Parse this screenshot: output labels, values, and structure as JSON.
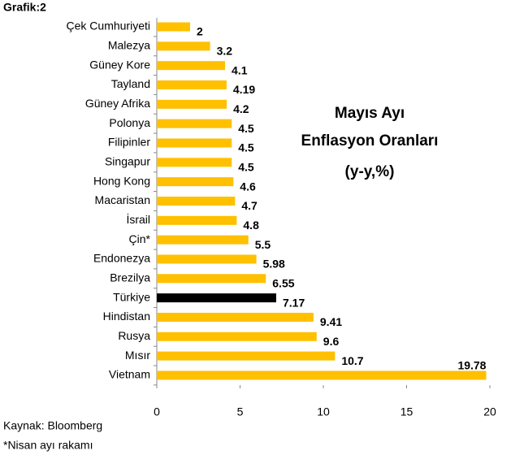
{
  "chart_data": {
    "type": "barh",
    "label": "Grafik:2",
    "title": [
      "Mayıs Ayı",
      "Enflasyon Oranları",
      "(y-y,%)"
    ],
    "categories": [
      "Çek Cumhuriyeti",
      "Malezya",
      "Güney Kore",
      "Tayland",
      "Güney Afrika",
      "Polonya",
      "Filipinler",
      "Singapur",
      "Hong Kong",
      "Macaristan",
      "İsrail",
      "Çin*",
      "Endonezya",
      "Brezilya",
      "Türkiye",
      "Hindistan",
      "Rusya",
      "Mısır",
      "Vietnam"
    ],
    "values": [
      2,
      3.2,
      4.1,
      4.19,
      4.2,
      4.5,
      4.5,
      4.5,
      4.6,
      4.7,
      4.8,
      5.5,
      5.98,
      6.55,
      7.17,
      9.41,
      9.6,
      10.7,
      19.78
    ],
    "colors": [
      "#FFC000",
      "#FFC000",
      "#FFC000",
      "#FFC000",
      "#FFC000",
      "#FFC000",
      "#FFC000",
      "#FFC000",
      "#FFC000",
      "#FFC000",
      "#FFC000",
      "#FFC000",
      "#FFC000",
      "#FFC000",
      "#000000",
      "#FFC000",
      "#FFC000",
      "#FFC000",
      "#FFC000"
    ],
    "xlim": [
      0,
      20
    ],
    "xticks": [
      0,
      5,
      10,
      15,
      20
    ],
    "source": "Kaynak: Bloomberg",
    "note": "*Nisan ayı rakamı"
  }
}
